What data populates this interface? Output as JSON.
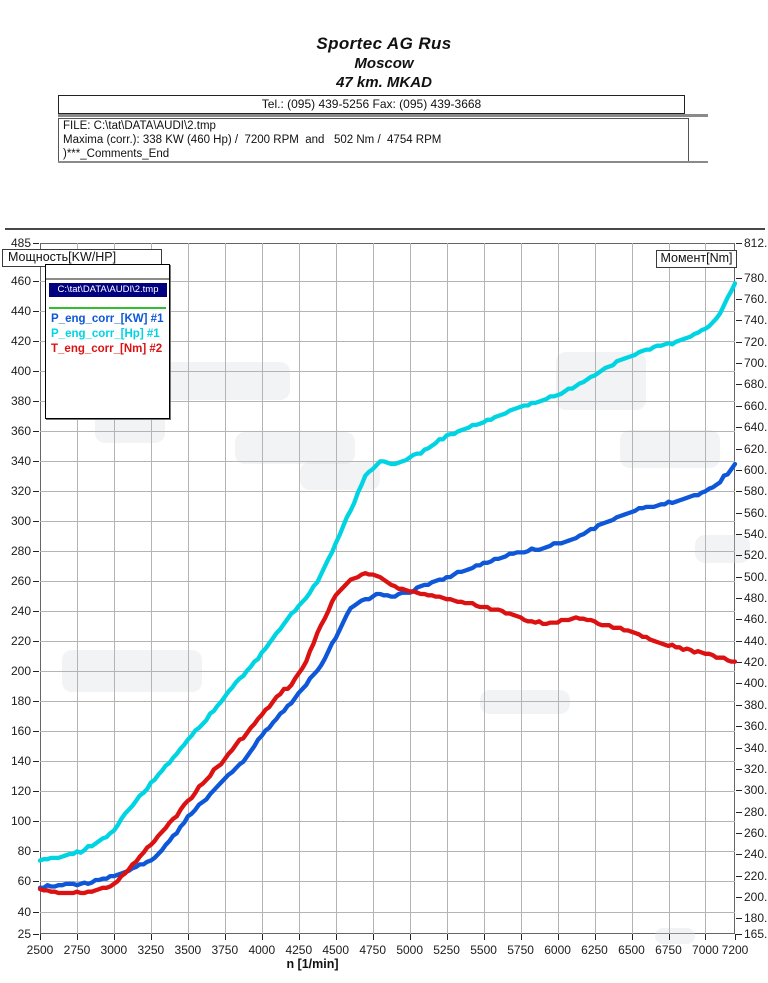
{
  "header": {
    "company": "Sportec AG Rus",
    "city": "Moscow",
    "address": "47 km. MKAD",
    "tel": "Tel.: (095) 439-5256 Fax: (095) 439-3668"
  },
  "info": {
    "file": "FILE: C:\\tat\\DATA\\AUDI\\2.tmp",
    "maxima": "Maxima (corr.): 338 KW (460 Hp) /  7200 RPM  and   502 Nm /  4754 RPM",
    "comments": ")***_Comments_End"
  },
  "legend": {
    "title": "C:\\tat\\DATA\\AUDI\\2.tmp"
  },
  "chart_data": {
    "type": "line",
    "title": "",
    "xlabel": "n  [1/min]",
    "x_range": [
      2500,
      7200
    ],
    "x_ticks": [
      2500,
      2750,
      3000,
      3250,
      3500,
      3750,
      4000,
      4250,
      4500,
      4750,
      5000,
      5250,
      5500,
      5750,
      6000,
      6250,
      6500,
      6750,
      7000,
      7200
    ],
    "left_axis": {
      "label": "Мощность[KW/HP]",
      "min": 25,
      "max": 485,
      "ticks": [
        485,
        460,
        440,
        420,
        400,
        380,
        360,
        340,
        320,
        300,
        280,
        260,
        240,
        220,
        200,
        180,
        160,
        140,
        120,
        100,
        80,
        60,
        40,
        25
      ]
    },
    "right_axis": {
      "label": "Момент[Nm]",
      "min": 165.4,
      "max": 812.4,
      "tick_values": [
        812.4,
        780,
        760,
        740,
        720,
        700,
        680,
        660,
        640,
        620,
        600,
        580,
        560,
        540,
        520,
        500,
        480,
        460,
        440,
        420,
        400,
        380,
        360,
        340,
        320,
        300,
        280,
        260,
        240,
        220,
        200,
        180,
        165.4
      ],
      "tick_labels": [
        "812.",
        "780.",
        "760.",
        "740.",
        "720.",
        "700.",
        "680.",
        "660.",
        "640.",
        "620.",
        "600.",
        "580.",
        "560.",
        "540.",
        "520.",
        "500.",
        "480.",
        "460.",
        "440.",
        "420.",
        "400.",
        "380.",
        "360.",
        "340.",
        "320.",
        "300.",
        "280.",
        "260.",
        "240.",
        "220.",
        "200.",
        "180.",
        "165."
      ]
    },
    "grid": true,
    "legend_position": "top-left",
    "x": [
      2500,
      2600,
      2700,
      2800,
      2900,
      3000,
      3100,
      3200,
      3300,
      3400,
      3500,
      3600,
      3700,
      3800,
      3900,
      4000,
      4100,
      4200,
      4300,
      4400,
      4500,
      4600,
      4700,
      4800,
      4900,
      5000,
      5100,
      5200,
      5300,
      5400,
      5500,
      5600,
      5700,
      5800,
      5900,
      6000,
      6100,
      6200,
      6300,
      6400,
      6500,
      6600,
      6700,
      6800,
      6900,
      7000,
      7100,
      7200
    ],
    "series": [
      {
        "name": "P_eng_corr_[KW] #1",
        "axis": "left",
        "color": "#0d57d8",
        "values": [
          56,
          57,
          58,
          59,
          61,
          63.5,
          67,
          71.5,
          78,
          90,
          103,
          113,
          123,
          133,
          143,
          157,
          168,
          179,
          191,
          204,
          222,
          242,
          248,
          251.5,
          250,
          252.5,
          257,
          261,
          264,
          268,
          272,
          275,
          278,
          280,
          282,
          285,
          288,
          293,
          298,
          302,
          306,
          309,
          311,
          313,
          316,
          320,
          326,
          338
        ]
      },
      {
        "name": "T_eng_corr_[Nm] #2",
        "axis": "right",
        "color": "#dc1212",
        "values": [
          207,
          205,
          204,
          204,
          207,
          212,
          226,
          241,
          257,
          273,
          290,
          306,
          322,
          338,
          354,
          371,
          388,
          399,
          420,
          455,
          483,
          497,
          503,
          500,
          491,
          486,
          484,
          481,
          478,
          475,
          472,
          469,
          464,
          458,
          456,
          457,
          461,
          460,
          455,
          452,
          448,
          443,
          438,
          434,
          431,
          428,
          424,
          420
        ]
      },
      {
        "name": "P_eng_corr_[Hp] #1",
        "axis": "left",
        "color": "#00d4e2",
        "values": [
          74,
          75.5,
          78,
          81,
          87,
          94,
          108,
          119,
          131,
          142,
          154,
          165,
          177,
          189,
          200,
          212,
          225,
          238,
          249,
          264,
          285,
          307,
          330,
          340,
          338,
          342,
          347,
          354,
          358,
          362,
          366,
          370,
          374,
          377,
          380,
          384,
          388,
          394,
          400,
          406,
          410,
          414,
          417,
          419,
          423,
          428,
          438,
          458
        ]
      }
    ],
    "maxima_annotation": "338 KW (460 Hp) / 7200 RPM ; 502 Nm / 4754 RPM"
  }
}
